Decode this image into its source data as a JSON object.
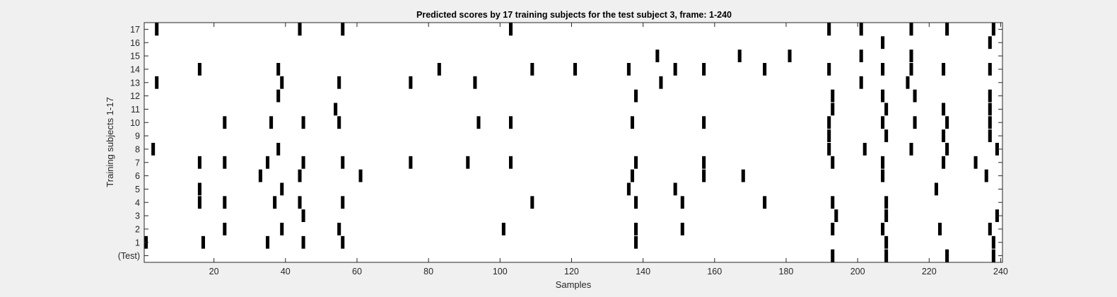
{
  "figure": {
    "background_color": "#f0f0f0",
    "axes_color": "#262626",
    "mark_color": "#000000"
  },
  "chart_data": {
    "type": "heatmap",
    "title": "Predicted scores by 17 training subjects for the test subject 3, frame: 1-240",
    "xlabel": "Samples",
    "ylabel": "Training subjects 1-17",
    "xlim": [
      0.5,
      240.5
    ],
    "x_ticks": [
      20,
      40,
      60,
      80,
      100,
      120,
      140,
      160,
      180,
      200,
      220,
      240
    ],
    "x_tick_labels": [
      "20",
      "40",
      "60",
      "80",
      "100",
      "120",
      "140",
      "160",
      "180",
      "200",
      "220",
      "240"
    ],
    "rows": [
      "(Test)",
      "1",
      "2",
      "3",
      "4",
      "5",
      "6",
      "7",
      "8",
      "9",
      "10",
      "11",
      "12",
      "13",
      "14",
      "15",
      "16",
      "17"
    ],
    "grid": false,
    "legend": "none",
    "series": [
      {
        "row": "(Test)",
        "x": [
          193,
          208,
          225,
          238
        ]
      },
      {
        "row": "1",
        "x": [
          1,
          17,
          35,
          45,
          56,
          138,
          208,
          238
        ]
      },
      {
        "row": "2",
        "x": [
          23,
          39,
          55,
          101,
          138,
          151,
          193,
          207,
          223,
          237
        ]
      },
      {
        "row": "3",
        "x": [
          45,
          194,
          208,
          239
        ]
      },
      {
        "row": "4",
        "x": [
          16,
          23,
          37,
          44,
          56,
          109,
          138,
          151,
          174,
          193,
          208
        ]
      },
      {
        "row": "5",
        "x": [
          16,
          39,
          136,
          149,
          222
        ]
      },
      {
        "row": "6",
        "x": [
          33,
          44,
          61,
          137,
          157,
          168,
          207,
          236
        ]
      },
      {
        "row": "7",
        "x": [
          16,
          23,
          35,
          45,
          56,
          75,
          91,
          103,
          138,
          157,
          193,
          207,
          224,
          233
        ]
      },
      {
        "row": "8",
        "x": [
          3,
          38,
          192,
          202,
          215,
          225,
          239
        ]
      },
      {
        "row": "9",
        "x": [
          192,
          208,
          224,
          237
        ]
      },
      {
        "row": "10",
        "x": [
          23,
          36,
          45,
          55,
          94,
          103,
          137,
          157,
          192,
          207,
          216,
          225,
          237
        ]
      },
      {
        "row": "11",
        "x": [
          54,
          193,
          208,
          224,
          237
        ]
      },
      {
        "row": "12",
        "x": [
          38,
          138,
          193,
          207,
          216,
          237
        ]
      },
      {
        "row": "13",
        "x": [
          4,
          39,
          55,
          75,
          93,
          145,
          201,
          214
        ]
      },
      {
        "row": "14",
        "x": [
          16,
          38,
          83,
          109,
          121,
          136,
          149,
          157,
          174,
          192,
          207,
          215,
          224,
          237
        ]
      },
      {
        "row": "15",
        "x": [
          144,
          167,
          181,
          201,
          215
        ]
      },
      {
        "row": "16",
        "x": [
          207,
          237
        ]
      },
      {
        "row": "17",
        "x": [
          4,
          44,
          56,
          103,
          192,
          201,
          215,
          225,
          238
        ]
      }
    ]
  }
}
